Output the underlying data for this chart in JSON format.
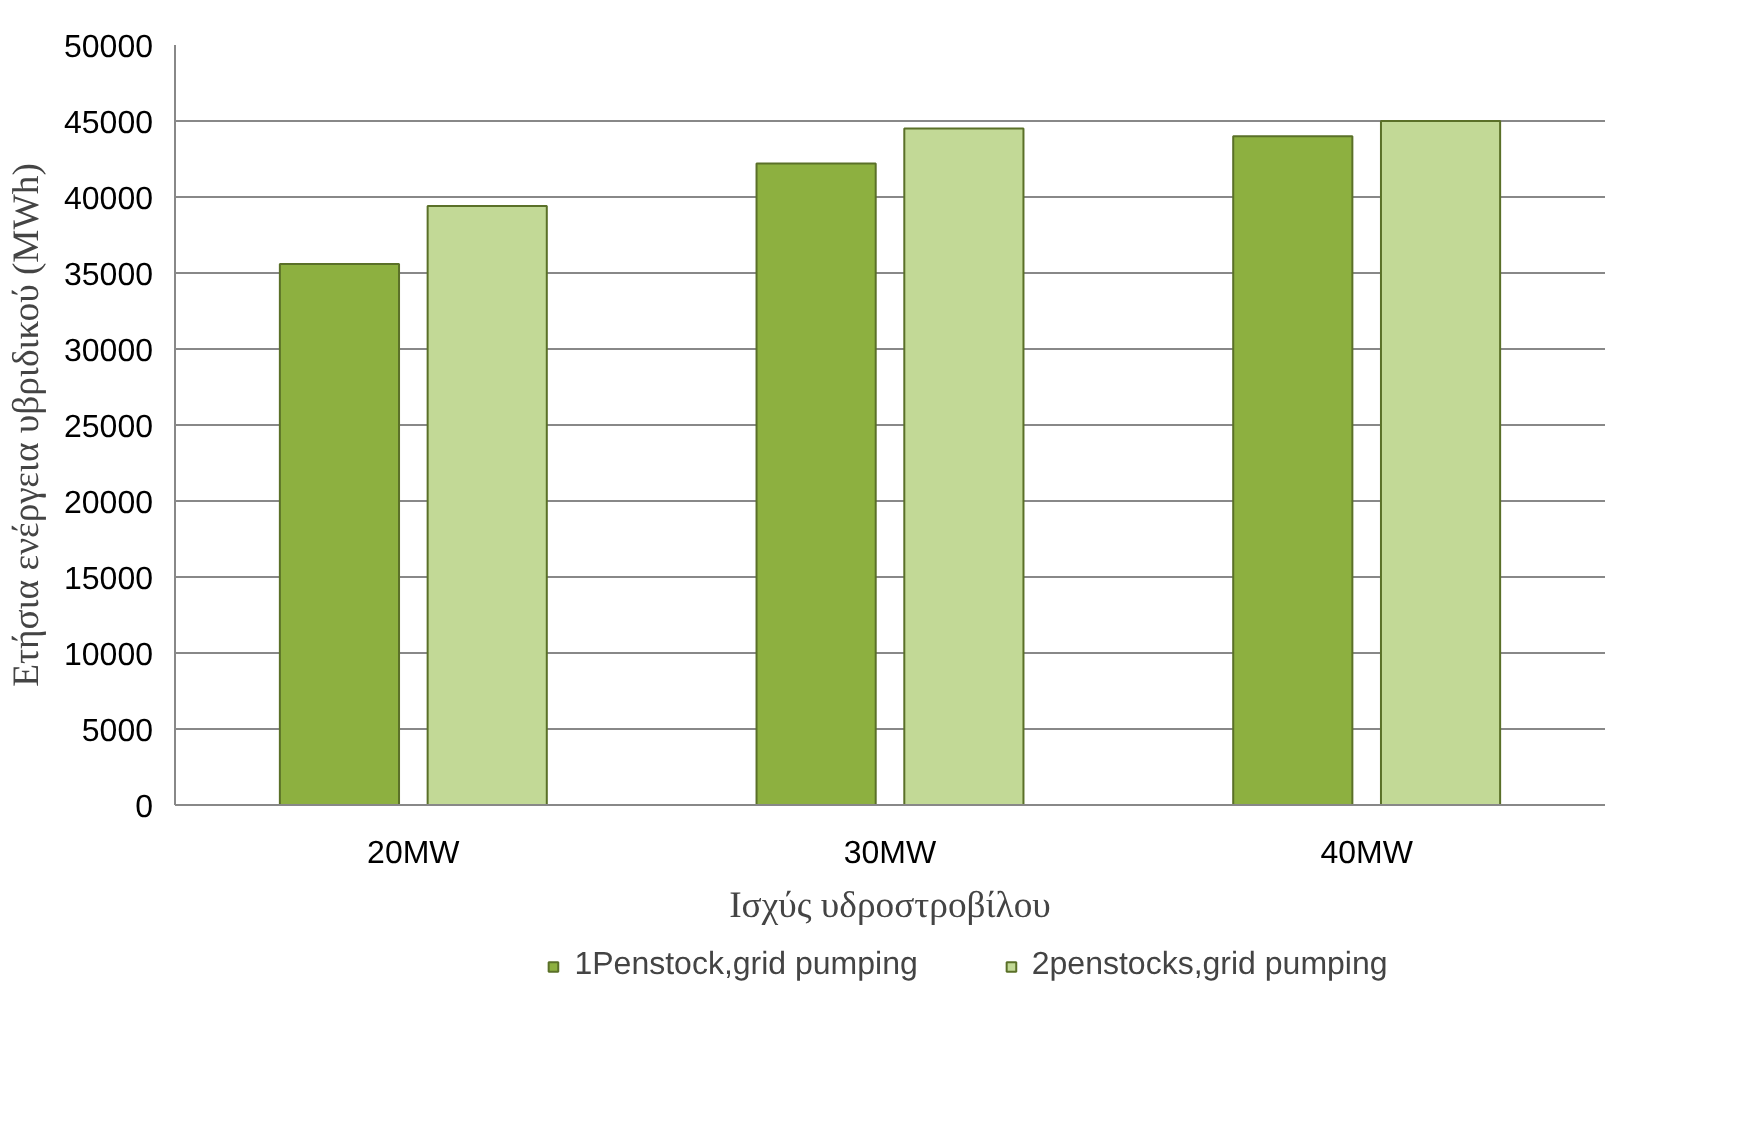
{
  "chart_data": {
    "type": "bar",
    "categories": [
      "20MW",
      "30MW",
      "40MW"
    ],
    "series": [
      {
        "name": "1Penstock,grid pumping",
        "color": "#8db040",
        "values": [
          35600,
          42200,
          44000
        ]
      },
      {
        "name": "2penstocks,grid pumping",
        "color": "#c2d996",
        "values": [
          39400,
          44500,
          45000
        ]
      }
    ],
    "xlabel": "Ισχύς υδροστροβίλου",
    "ylabel": "Ετήσια ενέργεια υβριδικού (MWh)",
    "ylim": [
      0,
      50000
    ],
    "yticks": [
      0,
      5000,
      10000,
      15000,
      20000,
      25000,
      30000,
      35000,
      40000,
      45000,
      50000
    ],
    "grid": "y",
    "legend": "bottom"
  }
}
